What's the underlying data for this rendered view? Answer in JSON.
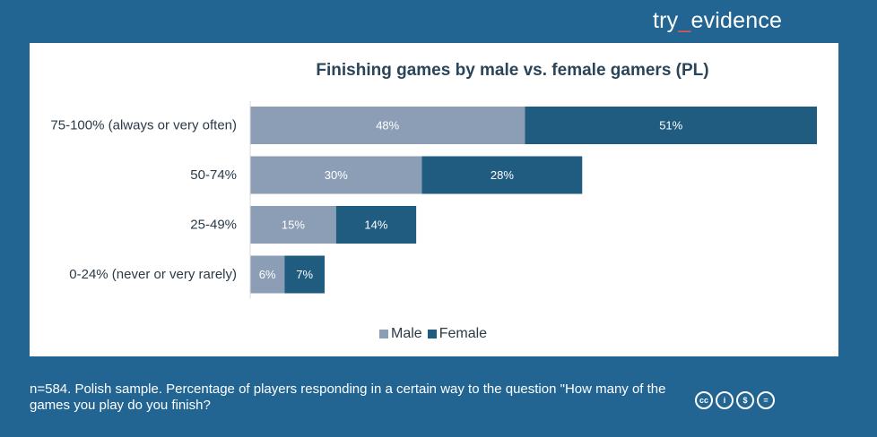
{
  "brand": {
    "part1": "try",
    "separator": "_",
    "part2": "evidence",
    "separator_color": "#e8524f"
  },
  "chart_data": {
    "type": "bar",
    "orientation": "horizontal",
    "stacked": true,
    "title": "Finishing games by male vs. female gamers (PL)",
    "categories": [
      "75-100% (always or very often)",
      "50-74%",
      "25-49%",
      "0-24% (never or very rarely)"
    ],
    "series": [
      {
        "name": "Male",
        "values": [
          48,
          30,
          15,
          6
        ],
        "labels": [
          "48%",
          "30%",
          "15%",
          "6%"
        ],
        "color": "#8c9eb5"
      },
      {
        "name": "Female",
        "values": [
          51,
          28,
          14,
          7
        ],
        "labels": [
          "51%",
          "28%",
          "14%",
          "7%"
        ],
        "color": "#205b80"
      }
    ],
    "xlabel": "",
    "ylabel": "",
    "xlim": [
      0,
      99
    ],
    "grid": false,
    "legend_position": "bottom-center"
  },
  "footer": {
    "note": "n=584. Polish sample. Percentage of players responding in a certain way to the question \"How many of the games you play do you finish?"
  },
  "license": {
    "icons": [
      "cc-icon",
      "by-icon",
      "nc-icon",
      "nd-icon"
    ],
    "glyphs": [
      "cc",
      "i",
      "$",
      "="
    ]
  },
  "colors": {
    "background": "#236592",
    "male": "#8c9eb5",
    "female": "#205b80"
  }
}
